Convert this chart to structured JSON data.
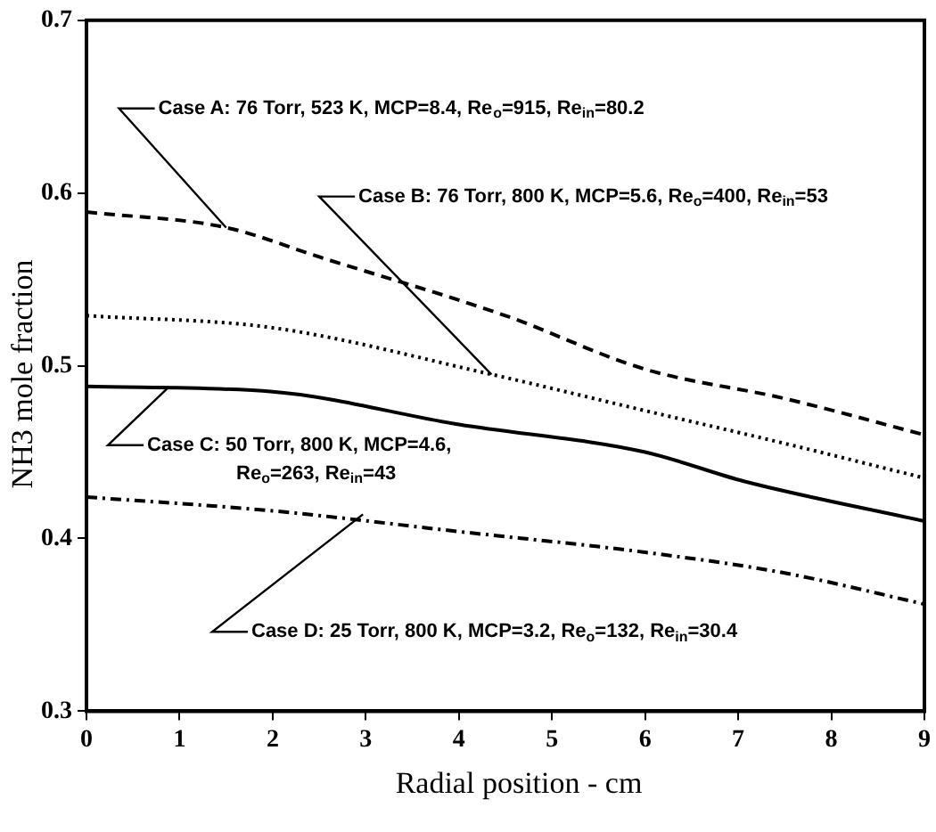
{
  "chart_data": {
    "type": "line",
    "xlabel": "Radial position - cm",
    "ylabel": "NH3 mole fraction",
    "xlim": [
      0,
      9
    ],
    "xticks": [
      0,
      1,
      2,
      3,
      4,
      5,
      6,
      7,
      8,
      9
    ],
    "ylim": [
      0.3,
      0.7
    ],
    "yticks": [
      0.3,
      0.4,
      0.5,
      0.6,
      0.7
    ],
    "grid": false,
    "legend": false,
    "marker": "none",
    "series": [
      {
        "color": "#000000",
        "line_style": "dashed",
        "x": [
          0,
          1.5,
          2.5,
          4.5,
          6,
          7.5,
          9
        ],
        "values": [
          0.589,
          0.58,
          0.563,
          0.529,
          0.498,
          0.481,
          0.46
        ]
      },
      {
        "color": "#000000",
        "line_style": "dotted",
        "x": [
          0,
          2,
          4.35,
          6,
          7.5,
          9
        ],
        "values": [
          0.529,
          0.522,
          0.495,
          0.474,
          0.455,
          0.435
        ]
      },
      {
        "color": "#000000",
        "line_style": "solid",
        "x": [
          0,
          2,
          4,
          6,
          7.07,
          9
        ],
        "values": [
          0.488,
          0.485,
          0.466,
          0.45,
          0.433,
          0.41
        ]
      },
      {
        "color": "#000000",
        "line_style": "dashdot",
        "x": [
          0,
          2,
          4,
          6,
          7.5,
          9
        ],
        "values": [
          0.424,
          0.416,
          0.404,
          0.392,
          0.38,
          0.362
        ]
      }
    ],
    "annotations": [
      {
        "text": "Case A: 76 Torr, 523 K, MCP=8.4, Re$_{o}$=915, Re$_{in}$=80.2",
        "x": 1.5,
        "y": 0.58
      },
      {
        "text": "Case B: 76 Torr, 800 K, MCP=5.6, Re$_{o}$=400, Re$_{in}$=53",
        "x": 4.35,
        "y": 0.495
      },
      {
        "text": "Case C: 50 Torr, 800 K, MCP=4.6,\nRe$_{o}$=263, Re$_{in}$=43",
        "x": 0.87,
        "y": 0.487
      },
      {
        "text": "Case D: 25 Torr, 800 K, MCP=3.2, Re$_{o}$=132, Re$_{in}$=30.4",
        "x": 2.97,
        "y": 0.414
      }
    ]
  }
}
